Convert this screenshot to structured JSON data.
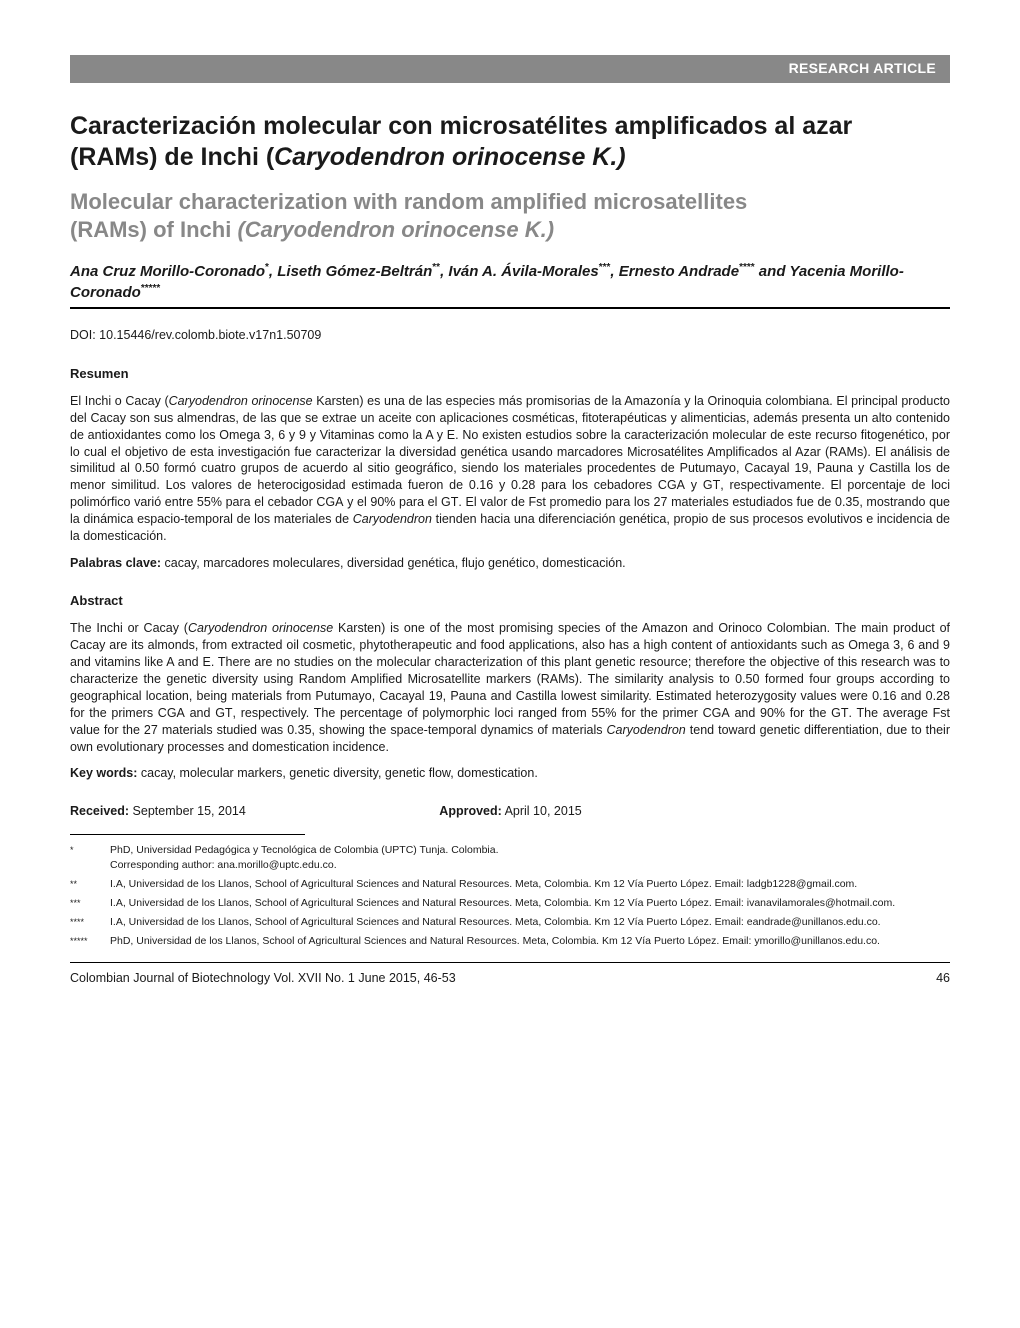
{
  "header": {
    "label": "RESEARCH ARTICLE"
  },
  "title_es_line1": "Caracterización molecular con microsatélites amplificados al azar",
  "title_es_line2_plain": "(RAMs) de Inchi (",
  "title_es_line2_italic": "Caryodendron orinocense K.)",
  "title_en_line1": "Molecular characterization with random amplified microsatellites",
  "title_en_line2_plain": "(RAMs) of Inchi ",
  "title_en_line2_italic": "(Caryodendron orinocense ",
  "title_en_line2_plain2": "K.)",
  "authors_html": "Ana Cruz Morillo-Coronado<sup>*</sup>, Liseth Gómez-Beltrán<sup>**</sup>, Iván A. Ávila-Morales<sup>***</sup>, Ernesto Andrade<sup>****</sup> and Yacenia Morillo-Coronado<sup>*****</sup>",
  "doi": "DOI: 10.15446/rev.colomb.biote.v17n1.50709",
  "resumen": {
    "heading": "Resumen",
    "body": "El Inchi o Cacay (<em>Caryodendron orinocense</em> Karsten) es una de las especies más promisorias de la Amazonía y la Orinoquia colombiana.  El principal producto del Cacay son sus almendras, de las que se extrae un aceite con aplicaciones cosméticas, fitoterapéuticas y alimenticias, además presenta un alto contenido de antioxidantes como los Omega 3, 6 y 9 y Vitaminas como la A y E. No existen estudios sobre la caracterización molecular de este recurso fitogenético, por lo cual el objetivo de esta investigación fue caracterizar la diversidad genética usando marcadores Microsatélites Amplificados al Azar (RAMs). El análisis de similitud al 0.50 formó cuatro grupos de acuerdo al sitio geográfico, siendo los materiales procedentes de Putumayo, Cacayal 19, Pauna y Castilla los de menor similitud. Los valores de heterocigosidad estimada fueron de 0.16 y 0.28 para los cebadores <span class=\"smallcaps\">CGA</span> y <span class=\"smallcaps\">GT</span>, respectivamente. El porcentaje de loci polimórfico varió entre 55% para el cebador <span class=\"smallcaps\">CGA</span> y el 90% para el <span class=\"smallcaps\">GT</span>. El valor de Fst promedio para los 27 materiales estudiados fue de 0.35, mostrando que la dinámica espacio-temporal de los materiales de <em>Caryodendron</em> tienden hacia una diferenciación genética, propio de sus procesos evolutivos e incidencia de la domesticación.",
    "keywords_label": "Palabras clave:",
    "keywords": " cacay, marcadores moleculares, diversidad genética, flujo genético, domesticación."
  },
  "abstract": {
    "heading": "Abstract",
    "body": "The Inchi or Cacay (<em>Caryodendron orinocense</em> Karsten) is one of the most promising species of the Amazon and Orinoco Colombian. The main product of Cacay are its almonds, from extracted oil cosmetic, phytotherapeutic and food applications, also has a high content of antioxidants such as Omega 3, 6 and 9 and vitamins like A and E. There are no studies on the molecular characterization of this plant genetic resource; therefore the objective of this research was to characterize the genetic diversity using Random Amplified Microsatellite markers (RAMs). The similarity analysis to 0.50 formed four groups according to geographical location, being materials from Putumayo, Cacayal 19, Pauna and Castilla lowest similarity. Estimated heterozygosity values were 0.16 and 0.28 for the primers <span class=\"smallcaps\">CGA</span> and <span class=\"smallcaps\">GT</span>, respectively. The percentage of polymorphic loci ranged from 55% for the primer <span class=\"smallcaps\">CGA</span> and 90% for the <span class=\"smallcaps\">GT</span>. The average Fst value for the 27 materials studied was 0.35, showing the space-temporal dynamics of materials <em>Caryodendron</em> tend toward genetic differentiation, due to their own evolutionary processes and domestication incidence.",
    "keywords_label": "Key words:",
    "keywords": " cacay, molecular markers, genetic diversity, genetic flow, domestication."
  },
  "dates": {
    "received_label": "Received:",
    "received": " September 15, 2014",
    "approved_label": "Approved:",
    "approved": " April 10, 2015"
  },
  "footnotes": [
    {
      "marker": "*",
      "text": "PhD, Universidad Pedagógica y Tecnológica de Colombia (UPTC) Tunja. Colombia.<br>Corresponding author: ana.morillo@uptc.edu.co."
    },
    {
      "marker": "**",
      "text": "I.A, Universidad de los Llanos, School of Agricultural Sciences and Natural Resources. Meta, Colombia. Km 12 Vía Puerto López. Email: ladgb1228@gmail.com."
    },
    {
      "marker": "***",
      "text": "I.A, Universidad de los Llanos, School of Agricultural Sciences and Natural Resources. Meta, Colombia. Km 12 Vía Puerto López. Email: ivanavilamorales@hotmail.com."
    },
    {
      "marker": "****",
      "text": "I.A, Universidad de los Llanos, School of Agricultural Sciences and Natural Resources. Meta, Colombia. Km 12 Vía Puerto López. Email: eandrade@unillanos.edu.co."
    },
    {
      "marker": "*****",
      "text": "PhD, Universidad de los Llanos, School of Agricultural Sciences and Natural Resources. Meta, Colombia. Km 12 Vía Puerto López. Email: ymorillo@unillanos.edu.co."
    }
  ],
  "footer": {
    "journal": "Colombian Journal of Biotechnology Vol. XVII No. 1 June 2015, 46-53",
    "page": "46"
  },
  "colors": {
    "header_bar_bg": "#888888",
    "header_bar_text": "#ffffff",
    "title_en_color": "#888888",
    "text_color": "#1a1a1a",
    "rule_color": "#000000",
    "background": "#ffffff"
  },
  "typography": {
    "title_es_fontsize": 25,
    "title_en_fontsize": 22,
    "authors_fontsize": 15,
    "body_fontsize": 12.5,
    "footnote_fontsize": 10.5,
    "heading_fontsize": 13
  }
}
